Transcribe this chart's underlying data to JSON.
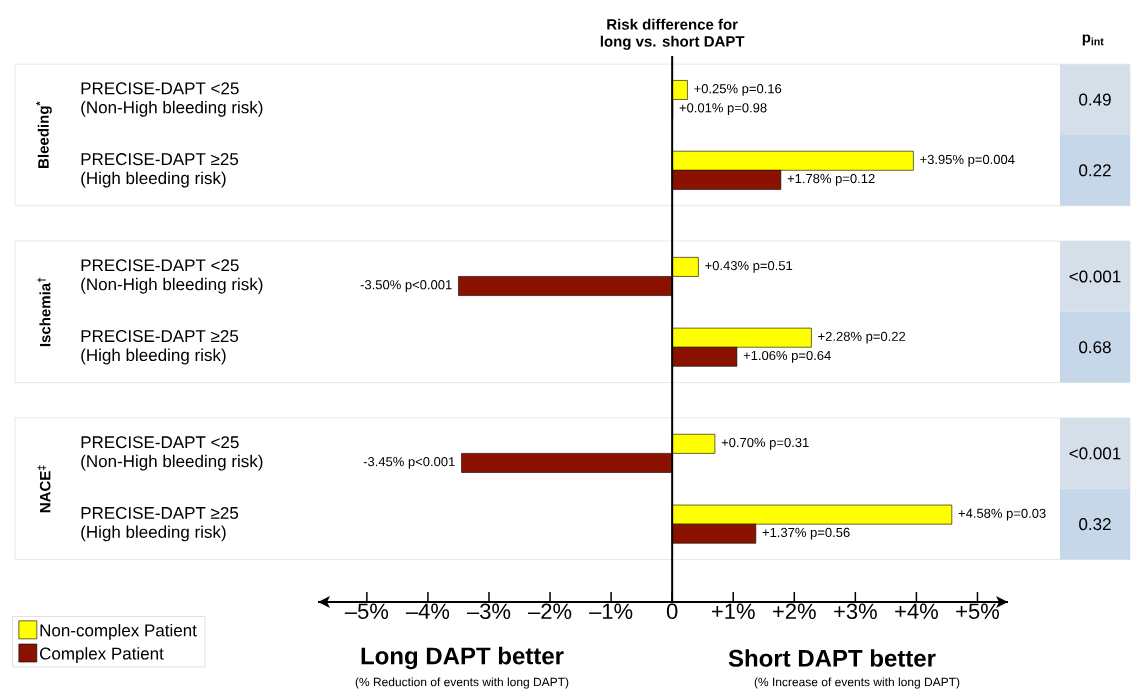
{
  "chart_data": {
    "type": "bar",
    "orientation": "horizontal",
    "title": "Risk difference for long vs. short DAPT",
    "categories": [
      "PRECISE-DAPT <25 (Non-High bleeding risk)",
      "PRECISE-DAPT ≥25 (High bleeding risk)",
      "PRECISE-DAPT <25 (Non-High bleeding risk)",
      "PRECISE-DAPT ≥25 (High bleeding risk)",
      "PRECISE-DAPT <25 (Non-High bleeding risk)",
      "PRECISE-DAPT ≥25 (High bleeding risk)"
    ],
    "series": [
      {
        "name": "Non-complex Patient",
        "color": "#ffff00",
        "values": [
          0.25,
          3.95,
          0.43,
          2.28,
          0.7,
          4.58
        ],
        "value_labels": [
          "+0.25%  p=0.16",
          "+3.95%  p=0.004",
          "+0.43% p=0.51",
          "+2.28%  p=0.22",
          "+0.70% p=0.31",
          "+4.58% p=0.03"
        ]
      },
      {
        "name": "Complex Patient",
        "color": "#8b1200",
        "values": [
          0.01,
          1.78,
          -3.5,
          1.06,
          -3.45,
          1.37
        ],
        "value_labels": [
          "+0.01%  p=0.98",
          "+1.78%  p=0.12",
          "-3.50% p<0.001",
          "+1.06%  p=0.64",
          "-3.45% p<0.001",
          "+1.37%  p=0.56"
        ]
      }
    ],
    "xlim": [
      -5.8,
      5.5
    ],
    "xticks": [
      {
        "value": -5,
        "label": "–5%"
      },
      {
        "value": -4,
        "label": "–4%"
      },
      {
        "value": -3,
        "label": "–3%"
      },
      {
        "value": -2,
        "label": "–2%"
      },
      {
        "value": -1,
        "label": "–1%"
      },
      0,
      {
        "value": 1,
        "label": "+1%"
      },
      {
        "value": 2,
        "label": "+2%"
      },
      {
        "value": 3,
        "label": "+3%"
      },
      {
        "value": 4,
        "label": "+4%"
      },
      {
        "value": 5,
        "label": "+5%"
      }
    ],
    "legend": "bottom left",
    "annotations": [
      "Long DAPT better",
      "(% Reduction of events with long DAPT)",
      "Short DAPT better",
      "(% Increase of events with long DAPT)",
      "Bleeding$^{*}$",
      "Ischemia$^{†}$",
      "NACE$^{‡}$",
      "p$_{int}$",
      "0.49",
      "0.22",
      "<0.001",
      "0.68",
      "<0.001",
      "0.32"
    ]
  }
}
